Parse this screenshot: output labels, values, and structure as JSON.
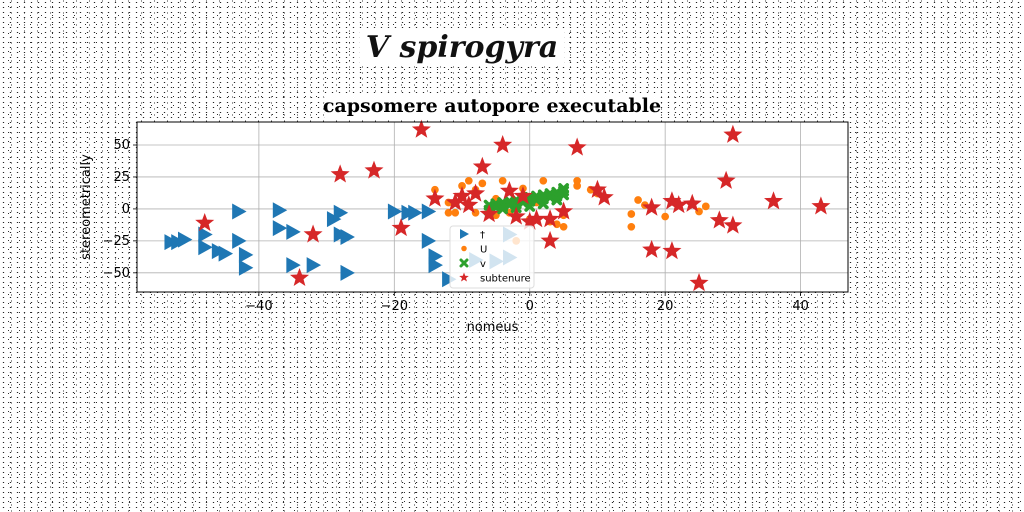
{
  "banner": "V spirogyra",
  "chart_data": {
    "type": "scatter",
    "title": "capsomere autopore executable",
    "xlabel": "nomeus",
    "ylabel": "stereometrically",
    "xlim": [
      -58,
      47
    ],
    "ylim": [
      -65,
      68
    ],
    "xticks": [
      -40,
      -20,
      0,
      20,
      40
    ],
    "yticks": [
      -50,
      -25,
      0,
      25,
      50
    ],
    "grid": true,
    "legend": "lower center",
    "series": [
      {
        "name": "†",
        "marker": "triangle-right",
        "color": "#1f77b4",
        "points": [
          [
            -53,
            -26
          ],
          [
            -52,
            -26
          ],
          [
            -51,
            -24
          ],
          [
            -48,
            -20
          ],
          [
            -48,
            -30
          ],
          [
            -46,
            -33
          ],
          [
            -45,
            -35
          ],
          [
            -43,
            -25
          ],
          [
            -42,
            -36
          ],
          [
            -42,
            -46
          ],
          [
            -43,
            -2
          ],
          [
            -37,
            -1
          ],
          [
            -37,
            -15
          ],
          [
            -35,
            -18
          ],
          [
            -35,
            -44
          ],
          [
            -32,
            -44
          ],
          [
            -29,
            -8
          ],
          [
            -28,
            -3
          ],
          [
            -28,
            -20
          ],
          [
            -27,
            -22
          ],
          [
            -27,
            -50
          ],
          [
            -20,
            -2
          ],
          [
            -18,
            -3
          ],
          [
            -17,
            -3
          ],
          [
            -15,
            -2
          ],
          [
            -15,
            -25
          ],
          [
            -14,
            -37
          ],
          [
            -14,
            -44
          ],
          [
            -12,
            -55
          ],
          [
            -8,
            -40
          ],
          [
            -5,
            -41
          ],
          [
            -3,
            -38
          ],
          [
            -3,
            -20
          ]
        ]
      },
      {
        "name": "U",
        "marker": "circle",
        "color": "#ff7f0e",
        "points": [
          [
            -14,
            15
          ],
          [
            -12,
            5
          ],
          [
            -12,
            -3
          ],
          [
            -11,
            -3
          ],
          [
            -10,
            10
          ],
          [
            -10,
            18
          ],
          [
            -9,
            22
          ],
          [
            -8,
            -3
          ],
          [
            -8,
            15
          ],
          [
            -7,
            20
          ],
          [
            -5,
            8
          ],
          [
            -5,
            -5
          ],
          [
            -4,
            22
          ],
          [
            -3,
            -3
          ],
          [
            -2,
            -25
          ],
          [
            -1,
            16
          ],
          [
            0,
            -8
          ],
          [
            1,
            5
          ],
          [
            2,
            22
          ],
          [
            3,
            -10
          ],
          [
            4,
            -12
          ],
          [
            5,
            -5
          ],
          [
            5,
            -14
          ],
          [
            7,
            22
          ],
          [
            7,
            18
          ],
          [
            9,
            15
          ],
          [
            10,
            12
          ],
          [
            15,
            -4
          ],
          [
            15,
            -14
          ],
          [
            16,
            7
          ],
          [
            17,
            3
          ],
          [
            20,
            -6
          ],
          [
            22,
            3
          ],
          [
            25,
            -2
          ],
          [
            26,
            2
          ]
        ]
      },
      {
        "name": "v",
        "marker": "cross",
        "color": "#2ca02c",
        "points": [
          [
            -6,
            3
          ],
          [
            -5,
            4
          ],
          [
            -4,
            5
          ],
          [
            -3,
            6
          ],
          [
            -2,
            7
          ],
          [
            -1,
            8
          ],
          [
            0,
            9
          ],
          [
            1,
            10
          ],
          [
            2,
            11
          ],
          [
            3,
            12
          ],
          [
            4,
            13
          ],
          [
            5,
            14
          ],
          [
            -5,
            1
          ],
          [
            -4,
            2
          ],
          [
            -3,
            3
          ],
          [
            -2,
            4
          ],
          [
            -1,
            5
          ],
          [
            0,
            6
          ],
          [
            1,
            7
          ],
          [
            2,
            8
          ],
          [
            3,
            9
          ],
          [
            4,
            10
          ],
          [
            5,
            11
          ],
          [
            -6,
            -1
          ],
          [
            -4,
            0
          ],
          [
            -2,
            1
          ],
          [
            0,
            2
          ],
          [
            2,
            4
          ],
          [
            4,
            7
          ],
          [
            5,
            16
          ]
        ]
      },
      {
        "name": "subtenure",
        "marker": "star",
        "color": "#d62728",
        "points": [
          [
            -48,
            -11
          ],
          [
            -34,
            -54
          ],
          [
            -32,
            -20
          ],
          [
            -28,
            27
          ],
          [
            -23,
            30
          ],
          [
            -19,
            -15
          ],
          [
            -16,
            62
          ],
          [
            -14,
            8
          ],
          [
            -11,
            5
          ],
          [
            -10,
            10
          ],
          [
            -9,
            3
          ],
          [
            -8,
            12
          ],
          [
            -7,
            33
          ],
          [
            -6,
            -4
          ],
          [
            -4,
            50
          ],
          [
            -3,
            14
          ],
          [
            -2,
            -6
          ],
          [
            -1,
            10
          ],
          [
            0,
            -10
          ],
          [
            1,
            -8
          ],
          [
            3,
            -25
          ],
          [
            3,
            -8
          ],
          [
            5,
            -2
          ],
          [
            7,
            48
          ],
          [
            10,
            15
          ],
          [
            11,
            9
          ],
          [
            18,
            1
          ],
          [
            18,
            -32
          ],
          [
            21,
            -33
          ],
          [
            21,
            6
          ],
          [
            22,
            3
          ],
          [
            24,
            4
          ],
          [
            25,
            -58
          ],
          [
            28,
            -9
          ],
          [
            29,
            22
          ],
          [
            30,
            58
          ],
          [
            30,
            -13
          ],
          [
            36,
            6
          ],
          [
            43,
            2
          ]
        ]
      }
    ]
  }
}
